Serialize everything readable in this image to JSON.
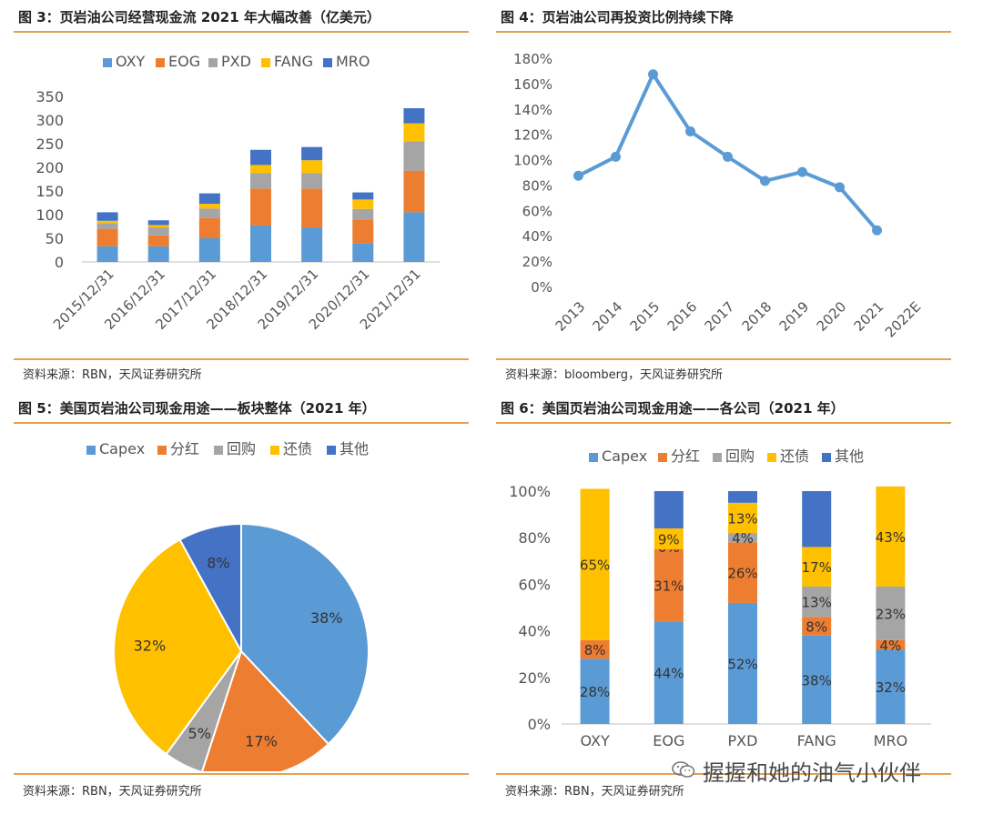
{
  "panels": [
    {
      "title": "图 3：页岩油公司经营现金流 2021 年大幅改善（亿美元）",
      "source": "资料来源：RBN，天风证券研究所"
    },
    {
      "title": "图 4：页岩油公司再投资比例持续下降",
      "source": "资料来源：bloomberg，天风证券研究所"
    },
    {
      "title": "图 5：美国页岩油公司现金用途——板块整体（2021 年）",
      "source": "资料来源：RBN，天风证券研究所"
    },
    {
      "title": "图 6：美国页岩油公司现金用途——各公司（2021 年）",
      "source": "资料来源：RBN，天风证券研究所"
    }
  ],
  "watermark": "握握和她的油气小伙伴",
  "chart_data": [
    {
      "type": "bar",
      "stacked": true,
      "categories": [
        "2015/12/31",
        "2016/12/31",
        "2017/12/31",
        "2018/12/31",
        "2019/12/31",
        "2020/12/31",
        "2021/12/31"
      ],
      "series": [
        {
          "name": "OXY",
          "color": "#5b9bd5",
          "values": [
            33,
            33,
            50,
            77,
            73,
            40,
            105
          ]
        },
        {
          "name": "EOG",
          "color": "#ed7d31",
          "values": [
            37,
            23,
            43,
            78,
            82,
            50,
            88
          ]
        },
        {
          "name": "PXD",
          "color": "#a5a5a5",
          "values": [
            12,
            17,
            20,
            33,
            33,
            22,
            62
          ]
        },
        {
          "name": "FANG",
          "color": "#ffc000",
          "values": [
            5,
            5,
            10,
            17,
            27,
            20,
            38
          ]
        },
        {
          "name": "MRO",
          "color": "#4472c4",
          "values": [
            18,
            10,
            22,
            32,
            28,
            15,
            32
          ]
        }
      ],
      "yticks": [
        "0",
        "50",
        "100",
        "150",
        "200",
        "250",
        "300",
        "350"
      ],
      "ylim": [
        0,
        350
      ],
      "legend": "top"
    },
    {
      "type": "line",
      "categories": [
        "2013",
        "2014",
        "2015",
        "2016",
        "2017",
        "2018",
        "2019",
        "2020",
        "2021",
        "2022E"
      ],
      "values": [
        88,
        103,
        168,
        123,
        103,
        84,
        91,
        79,
        45,
        null
      ],
      "color": "#5b9bd5",
      "yticks": [
        "0%",
        "20%",
        "40%",
        "60%",
        "80%",
        "100%",
        "120%",
        "140%",
        "160%",
        "180%"
      ],
      "ylim": [
        0,
        180
      ]
    },
    {
      "type": "pie",
      "categories": [
        "Capex",
        "分红",
        "回购",
        "还债",
        "其他"
      ],
      "values": [
        38,
        17,
        5,
        32,
        8
      ],
      "labels": [
        "38%",
        "17%",
        "5%",
        "32%",
        "8%"
      ],
      "colors": [
        "#5b9bd5",
        "#ed7d31",
        "#a5a5a5",
        "#ffc000",
        "#4472c4"
      ],
      "legend": "top"
    },
    {
      "type": "bar",
      "stacked": true,
      "percent": true,
      "categories": [
        "OXY",
        "EOG",
        "PXD",
        "FANG",
        "MRO"
      ],
      "series": [
        {
          "name": "Capex",
          "color": "#5b9bd5",
          "values": [
            28,
            44,
            52,
            38,
            32
          ],
          "labels": [
            "28%",
            "44%",
            "52%",
            "38%",
            "32%"
          ]
        },
        {
          "name": "分红",
          "color": "#ed7d31",
          "values": [
            8,
            31,
            26,
            8,
            4
          ],
          "labels": [
            "8%",
            "31%",
            "26%",
            "8%",
            "4%"
          ]
        },
        {
          "name": "回购",
          "color": "#a5a5a5",
          "values": [
            0,
            0,
            4,
            13,
            23
          ],
          "labels": [
            "",
            "0%",
            "4%",
            "13%",
            "23%"
          ]
        },
        {
          "name": "还债",
          "color": "#ffc000",
          "values": [
            65,
            9,
            13,
            17,
            43
          ],
          "labels": [
            "65%",
            "9%",
            "13%",
            "17%",
            "43%"
          ]
        },
        {
          "name": "其他",
          "color": "#4472c4",
          "values": [
            0,
            16,
            5,
            24,
            0
          ],
          "labels": [
            "",
            "",
            "",
            "",
            ""
          ]
        }
      ],
      "yticks": [
        "0%",
        "20%",
        "40%",
        "60%",
        "80%",
        "100%"
      ],
      "ylim": [
        0,
        100
      ],
      "legend": "top"
    }
  ]
}
